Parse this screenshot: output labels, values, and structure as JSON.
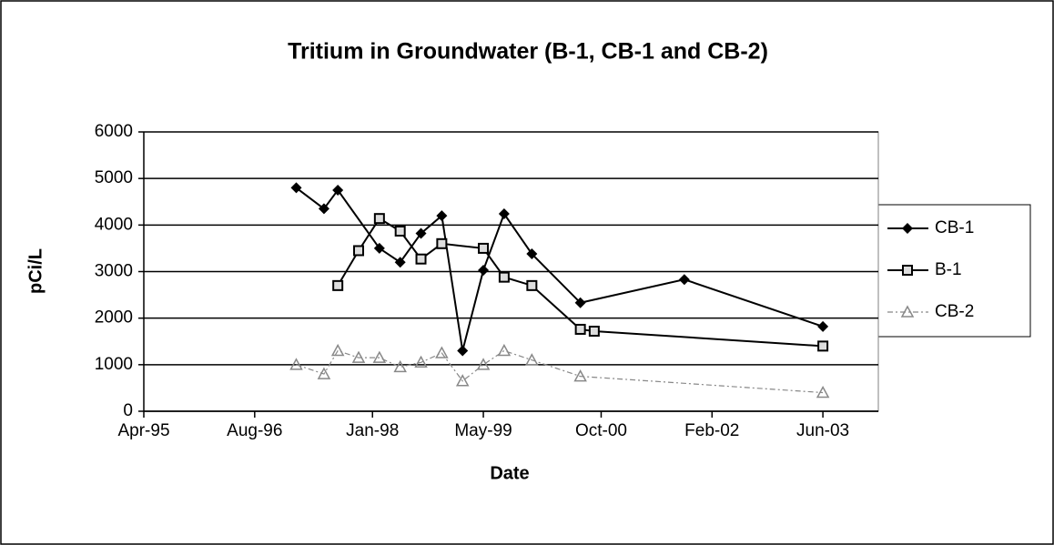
{
  "chart_data": {
    "type": "line",
    "title": "Tritium in Groundwater (B-1, CB-1 and CB-2)",
    "xlabel": "Date",
    "ylabel": "pCi/L",
    "xlim": [
      "1995-04",
      "2004-02"
    ],
    "xticks": [
      {
        "value": "1995-04",
        "label": "Apr-95"
      },
      {
        "value": "1996-08",
        "label": "Aug-96"
      },
      {
        "value": "1998-01",
        "label": "Jan-98"
      },
      {
        "value": "1999-05",
        "label": "May-99"
      },
      {
        "value": "2000-10",
        "label": "Oct-00"
      },
      {
        "value": "2002-02",
        "label": "Feb-02"
      },
      {
        "value": "2003-06",
        "label": "Jun-03"
      }
    ],
    "ylim": [
      0,
      6000
    ],
    "yticks": [
      0,
      1000,
      2000,
      3000,
      4000,
      5000,
      6000
    ],
    "grid": true,
    "legend": "right",
    "series": [
      {
        "name": "CB-1",
        "color": "#000000",
        "marker": "diamond",
        "dash": "solid",
        "x": [
          "1997-02",
          "1997-06",
          "1997-08",
          "1998-02",
          "1998-05",
          "1998-08",
          "1998-11",
          "1999-02",
          "1999-05",
          "1999-08",
          "1999-12",
          "2000-07",
          "2001-10",
          "2003-06"
        ],
        "values": [
          4800,
          4350,
          4750,
          3500,
          3200,
          3820,
          4200,
          1300,
          3030,
          4240,
          3380,
          2330,
          2830,
          1820
        ]
      },
      {
        "name": "B-1",
        "color": "#000000",
        "marker": "square",
        "dash": "solid",
        "x": [
          "1997-08",
          "1997-11",
          "1998-02",
          "1998-05",
          "1998-08",
          "1998-11",
          "1999-05",
          "1999-08",
          "1999-12",
          "2000-07",
          "2000-09",
          "2003-06"
        ],
        "values": [
          2700,
          3450,
          4140,
          3870,
          3270,
          3600,
          3500,
          2880,
          2700,
          1760,
          1720,
          1400
        ]
      },
      {
        "name": "CB-2",
        "color": "#888888",
        "marker": "triangle",
        "dash": "dashed",
        "x": [
          "1997-02",
          "1997-06",
          "1997-08",
          "1997-11",
          "1998-02",
          "1998-05",
          "1998-08",
          "1998-11",
          "1999-02",
          "1999-05",
          "1999-08",
          "1999-12",
          "2000-07",
          "2003-06"
        ],
        "values": [
          1000,
          800,
          1300,
          1150,
          1150,
          950,
          1050,
          1250,
          650,
          1000,
          1300,
          1100,
          750,
          400
        ]
      }
    ]
  }
}
